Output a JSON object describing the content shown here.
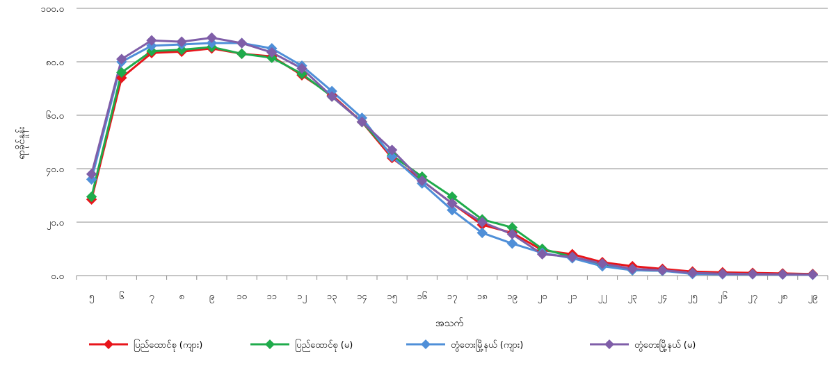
{
  "chart_data": {
    "type": "line",
    "xlabel": "အသက်",
    "ylabel": "ရာခိုင်နှုန်း",
    "ylim": [
      0,
      100
    ],
    "y_ticks": [
      "၀.၀",
      "၂၀.၀",
      "၄၀.၀",
      "၆၀.၀",
      "၈၀.၀",
      "၁၀၀.၀"
    ],
    "y_tick_values": [
      0,
      20,
      40,
      60,
      80,
      100
    ],
    "categories": [
      "၅",
      "၆",
      "၇",
      "၈",
      "၉",
      "၁၀",
      "၁၁",
      "၁၂",
      "၁၃",
      "၁၄",
      "၁၅",
      "၁၆",
      "၁၇",
      "၁၈",
      "၁၉",
      "၂၀",
      "၂၁",
      "၂၂",
      "၂၃",
      "၂၄",
      "၂၅",
      "၂၆",
      "၂၇",
      "၂၈",
      "၂၉"
    ],
    "grid": true,
    "legend_position": "bottom",
    "series": [
      {
        "name": "ပြည်ထောင်စု (ကျား)",
        "color": "#e8151b",
        "marker": "diamond",
        "values": [
          28.5,
          74.0,
          83.3,
          83.8,
          85.0,
          83.0,
          82.0,
          75.0,
          67.5,
          57.5,
          44.0,
          35.5,
          27.0,
          19.0,
          16.0,
          9.5,
          8.0,
          5.0,
          3.5,
          2.5,
          1.5,
          1.2,
          1.0,
          0.8,
          0.6
        ]
      },
      {
        "name": "ပြည်ထောင်စု (မ)",
        "color": "#1fab4b",
        "marker": "diamond",
        "values": [
          29.5,
          76.0,
          84.0,
          84.5,
          85.5,
          83.0,
          81.5,
          75.5,
          67.0,
          57.5,
          45.0,
          37.0,
          29.5,
          21.0,
          18.0,
          10.0,
          7.0,
          3.8,
          2.0,
          1.8,
          1.0,
          0.7,
          0.6,
          0.5,
          0.4
        ]
      },
      {
        "name": "တွံတေးမြို့နယ် (ကျား)",
        "color": "#4f8fd8",
        "marker": "diamond",
        "values": [
          36.0,
          80.0,
          86.0,
          86.5,
          87.0,
          87.0,
          85.0,
          78.5,
          69.0,
          59.0,
          44.5,
          34.5,
          24.5,
          16.0,
          12.0,
          8.5,
          6.5,
          3.5,
          2.0,
          1.8,
          0.6,
          0.5,
          0.5,
          0.4,
          0.3
        ]
      },
      {
        "name": "တွံတေးမြို့နယ် (မ)",
        "color": "#7f5ea8",
        "marker": "diamond",
        "values": [
          38.0,
          81.0,
          88.0,
          87.5,
          89.0,
          87.0,
          83.5,
          77.5,
          67.0,
          57.5,
          47.0,
          35.5,
          27.0,
          20.0,
          15.5,
          8.0,
          7.0,
          4.5,
          2.5,
          2.0,
          1.0,
          0.7,
          0.6,
          0.5,
          0.4
        ]
      }
    ]
  }
}
